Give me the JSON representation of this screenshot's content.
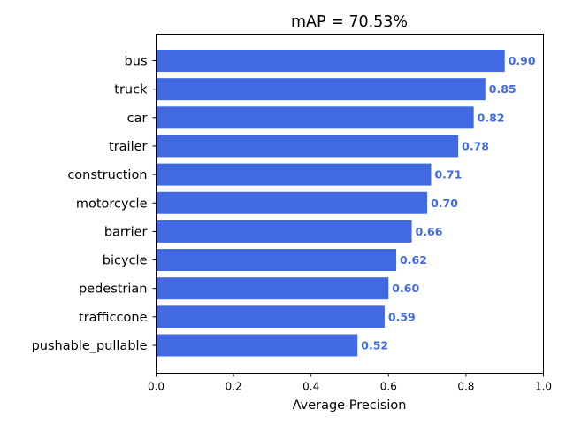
{
  "chart_data": {
    "type": "bar",
    "orientation": "horizontal",
    "title": "mAP = 70.53%",
    "xlabel": "Average Precision",
    "ylabel": "",
    "xlim": [
      0,
      1.0
    ],
    "xticks": [
      "0.0",
      "0.2",
      "0.4",
      "0.6",
      "0.8",
      "1.0"
    ],
    "categories": [
      "bus",
      "truck",
      "car",
      "trailer",
      "construction",
      "motorcycle",
      "barrier",
      "bicycle",
      "pedestrian",
      "trafficcone",
      "pushable_pullable"
    ],
    "values": [
      0.9,
      0.85,
      0.82,
      0.78,
      0.71,
      0.7,
      0.66,
      0.62,
      0.6,
      0.59,
      0.52
    ],
    "value_labels": [
      "0.90",
      "0.85",
      "0.82",
      "0.78",
      "0.71",
      "0.70",
      "0.66",
      "0.62",
      "0.60",
      "0.59",
      "0.52"
    ],
    "bar_color": "#4169e1",
    "label_color": "#4169e1",
    "grid": false
  }
}
